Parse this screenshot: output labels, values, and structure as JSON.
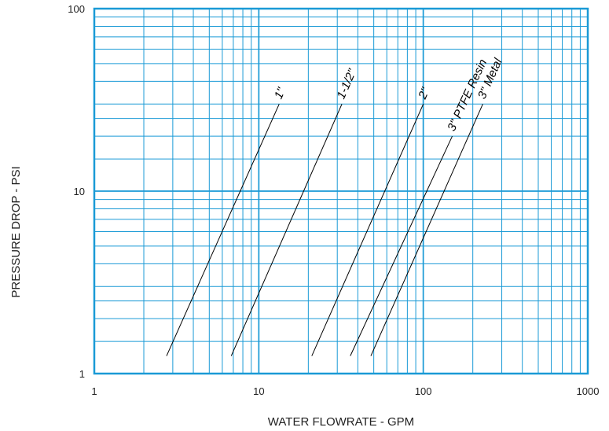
{
  "chart_data": {
    "type": "line",
    "title": "",
    "xlabel": "WATER FLOWRATE - GPM",
    "ylabel": "PRESSURE DROP - PSI",
    "xscale": "log",
    "yscale": "log",
    "xlim": [
      1,
      1000
    ],
    "ylim": [
      1,
      100
    ],
    "x_ticks": [
      "1",
      "10",
      "100",
      "1000"
    ],
    "y_ticks": [
      "1",
      "10",
      "100"
    ],
    "grid": true,
    "colors": {
      "grid": "#1a9ad6",
      "line": "#000000"
    },
    "series": [
      {
        "name": "1\"",
        "x": [
          2.75,
          13.3
        ],
        "y": [
          1.25,
          30
        ]
      },
      {
        "name": "1-1/2\"",
        "x": [
          6.8,
          32
        ],
        "y": [
          1.25,
          30
        ]
      },
      {
        "name": "2\"",
        "x": [
          21,
          100
        ],
        "y": [
          1.25,
          30
        ]
      },
      {
        "name": "3\" PTFE Resin",
        "x": [
          36,
          150
        ],
        "y": [
          1.25,
          20
        ]
      },
      {
        "name": "3\" Metal",
        "x": [
          48,
          230
        ],
        "y": [
          1.25,
          30
        ]
      }
    ]
  }
}
